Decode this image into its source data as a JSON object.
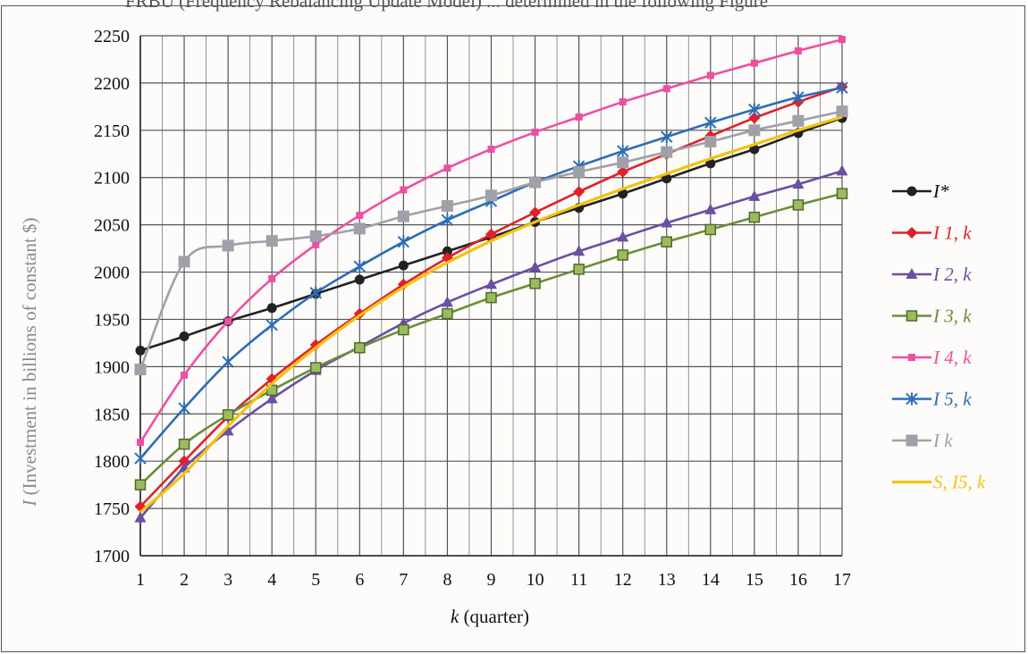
{
  "caption": "FRBU (Frequency Rebalancing Update Model) ... determined in the following Figure",
  "chart_data": {
    "type": "line",
    "xlabel_var": "k",
    "xlabel_rest": " (quarter)",
    "ylabel_var": "I",
    "ylabel_rest": " (Investment in billions of constant $)",
    "x": [
      1,
      2,
      3,
      4,
      5,
      6,
      7,
      8,
      9,
      10,
      11,
      12,
      13,
      14,
      15,
      16,
      17
    ],
    "xlim": [
      1,
      17
    ],
    "ylim": [
      1700,
      2250
    ],
    "yticks": [
      1700,
      1750,
      1800,
      1850,
      1900,
      1950,
      2000,
      2050,
      2100,
      2150,
      2200,
      2250
    ],
    "grid": true,
    "legend_position": "right",
    "series": [
      {
        "name": "I*",
        "color": "#222222",
        "marker": "circle",
        "values": [
          1917,
          1932,
          1948,
          1962,
          1977,
          1992,
          2007,
          2022,
          2037,
          2053,
          2068,
          2083,
          2099,
          2115,
          2130,
          2147,
          2163
        ]
      },
      {
        "name": "I 1, k",
        "color": "#e0202a",
        "marker": "diamond",
        "values": [
          1752,
          1800,
          1847,
          1887,
          1923,
          1956,
          1987,
          2015,
          2040,
          2063,
          2085,
          2106,
          2125,
          2144,
          2163,
          2180,
          2196
        ]
      },
      {
        "name": "I 2, k",
        "color": "#6a4fa3",
        "marker": "triangle",
        "values": [
          1740,
          1793,
          1832,
          1866,
          1896,
          1921,
          1946,
          1968,
          1987,
          2005,
          2022,
          2037,
          2052,
          2066,
          2080,
          2093,
          2107
        ]
      },
      {
        "name": "I 3, k",
        "color": "#6b8e3a",
        "marker": "square-open",
        "values": [
          1775,
          1818,
          1849,
          1875,
          1899,
          1920,
          1939,
          1956,
          1973,
          1988,
          2003,
          2018,
          2032,
          2045,
          2058,
          2071,
          2083
        ]
      },
      {
        "name": "I 4, k",
        "color": "#ee4fa1",
        "marker": "square-small",
        "values": [
          1820,
          1891,
          1948,
          1993,
          2029,
          2060,
          2087,
          2110,
          2130,
          2148,
          2164,
          2180,
          2194,
          2208,
          2221,
          2234,
          2246
        ]
      },
      {
        "name": "I 5, k",
        "color": "#2f6db5",
        "marker": "star",
        "values": [
          1803,
          1856,
          1905,
          1944,
          1978,
          2006,
          2032,
          2055,
          2075,
          2095,
          2112,
          2128,
          2143,
          2158,
          2172,
          2185,
          2195
        ]
      },
      {
        "name": "I k",
        "color": "#a0a0a8",
        "marker": "square",
        "values": [
          1897,
          2011,
          2028,
          2033,
          2038,
          2046,
          2059,
          2070,
          2081,
          2095,
          2106,
          2116,
          2127,
          2138,
          2150,
          2160,
          2170
        ]
      },
      {
        "name": "S, I5, k",
        "color": "#f2c30f",
        "marker": "none",
        "values": [
          1746,
          1787,
          1837,
          1882,
          1920,
          1954,
          1984,
          2010,
          2033,
          2053,
          2071,
          2088,
          2104,
          2120,
          2135,
          2150,
          2164
        ]
      }
    ]
  }
}
